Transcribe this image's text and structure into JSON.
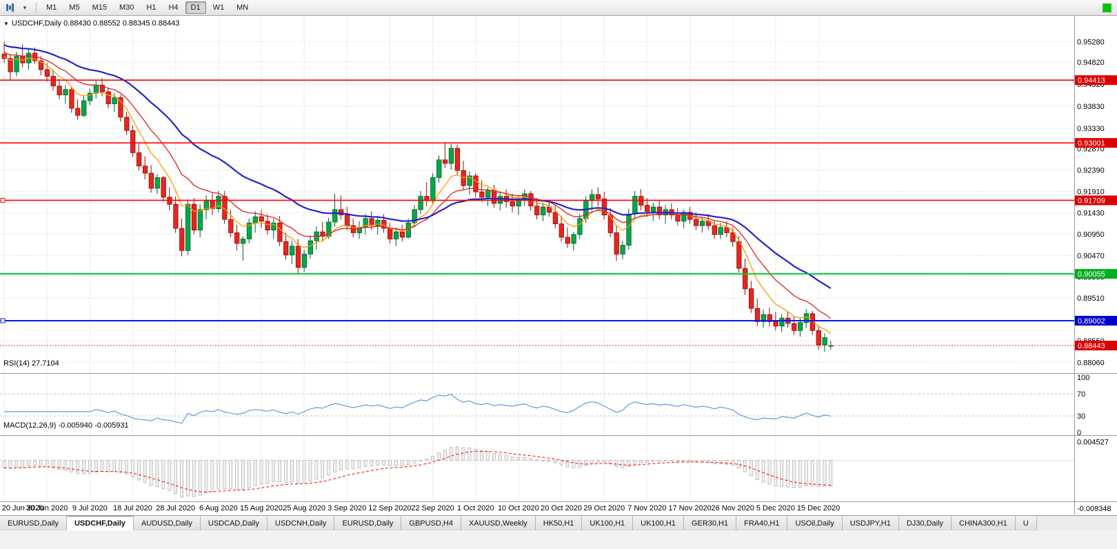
{
  "icons": {
    "chart_dropdown": "▼",
    "caret_down": "▾"
  },
  "toolbar": {
    "timeframes": [
      "M1",
      "M5",
      "M15",
      "M30",
      "H1",
      "H4",
      "D1",
      "W1",
      "MN"
    ],
    "active_timeframe": "D1",
    "status_color": "#00c800"
  },
  "chart": {
    "title": "USDCHF,Daily 0.88430 0.88552 0.88345 0.88443",
    "symbol": "USDCHF",
    "period": "Daily",
    "open": "0.88430",
    "high": "0.88552",
    "low": "0.88345",
    "close": "0.88443"
  },
  "indicators": {
    "rsi_label": "RSI(14) 27.7104",
    "macd_label": "MACD(12,26,9) -0.005940 -0.005931"
  },
  "chart_data": {
    "type": "candlestick",
    "symbol": "USDCHF",
    "timeframe": "Daily",
    "price_range": {
      "min": 0.879,
      "max": 0.9575
    },
    "price_axis_labels": [
      0.9528,
      0.9482,
      0.9432,
      0.9383,
      0.9333,
      0.9287,
      0.9239,
      0.9191,
      0.9143,
      0.9095,
      0.9047,
      0.8999,
      0.8951,
      0.8855,
      0.8806
    ],
    "hlines": [
      {
        "value": 0.94413,
        "label": "0.94413",
        "color": "#ff0000",
        "badge": "#dd0000",
        "width": 1.6,
        "handle": false
      },
      {
        "value": 0.93001,
        "label": "0.93001",
        "color": "#ff0000",
        "badge": "#dd0000",
        "width": 1.6,
        "handle": false
      },
      {
        "value": 0.91709,
        "label": "0.91709",
        "color": "#ff0000",
        "badge": "#dd0000",
        "width": 1.6,
        "handle": true
      },
      {
        "value": 0.90055,
        "label": "0.90055",
        "color": "#00d02a",
        "badge": "#00b020",
        "width": 2,
        "handle": false
      },
      {
        "value": 0.89002,
        "label": "0.89002",
        "color": "#0018ff",
        "badge": "#0000cc",
        "width": 2,
        "handle": true
      }
    ],
    "current_price": {
      "value": 0.88443,
      "label": "0.88443",
      "color": "#e03030",
      "badge": "#dd0000"
    },
    "date_labels": [
      "20 Jun 2020",
      "30 Jun 2020",
      "9 Jul 2020",
      "18 Jul 2020",
      "28 Jul 2020",
      "6 Aug 2020",
      "15 Aug 2020",
      "25 Aug 2020",
      "3 Sep 2020",
      "12 Sep 2020",
      "22 Sep 2020",
      "1 Oct 2020",
      "10 Oct 2020",
      "20 Oct 2020",
      "29 Oct 2020",
      "7 Nov 2020",
      "17 Nov 2020",
      "26 Nov 2020",
      "5 Dec 2020",
      "15 Dec 2020"
    ],
    "label_every": 7,
    "candles": [
      [
        0.95,
        0.9528,
        0.948,
        0.949
      ],
      [
        0.949,
        0.95,
        0.9441,
        0.946
      ],
      [
        0.946,
        0.9505,
        0.945,
        0.9495
      ],
      [
        0.9495,
        0.9522,
        0.947,
        0.948
      ],
      [
        0.948,
        0.9512,
        0.9465,
        0.9502
      ],
      [
        0.9502,
        0.9515,
        0.9478,
        0.9485
      ],
      [
        0.9485,
        0.9495,
        0.9452,
        0.9465
      ],
      [
        0.9465,
        0.948,
        0.9438,
        0.945
      ],
      [
        0.945,
        0.9465,
        0.9418,
        0.9428
      ],
      [
        0.9428,
        0.9445,
        0.9398,
        0.9408
      ],
      [
        0.9408,
        0.943,
        0.9388,
        0.942
      ],
      [
        0.942,
        0.9426,
        0.9368,
        0.9378
      ],
      [
        0.9378,
        0.9398,
        0.9352,
        0.9362
      ],
      [
        0.9362,
        0.9405,
        0.9358,
        0.9395
      ],
      [
        0.9395,
        0.9422,
        0.9385,
        0.9412
      ],
      [
        0.9412,
        0.944,
        0.94,
        0.943
      ],
      [
        0.943,
        0.9446,
        0.9405,
        0.9415
      ],
      [
        0.9415,
        0.9425,
        0.9378,
        0.9388
      ],
      [
        0.9388,
        0.9412,
        0.937,
        0.9402
      ],
      [
        0.9402,
        0.9408,
        0.9348,
        0.9358
      ],
      [
        0.9358,
        0.937,
        0.9318,
        0.9328
      ],
      [
        0.9328,
        0.934,
        0.9268,
        0.9278
      ],
      [
        0.9278,
        0.93,
        0.9238,
        0.9248
      ],
      [
        0.9248,
        0.927,
        0.9218,
        0.9232
      ],
      [
        0.9232,
        0.925,
        0.9188,
        0.9198
      ],
      [
        0.9198,
        0.923,
        0.9185,
        0.9222
      ],
      [
        0.9222,
        0.9226,
        0.9168,
        0.9178
      ],
      [
        0.9178,
        0.92,
        0.9148,
        0.9162
      ],
      [
        0.9162,
        0.918,
        0.9098,
        0.9108
      ],
      [
        0.9108,
        0.913,
        0.9045,
        0.9058
      ],
      [
        0.9058,
        0.9172,
        0.9048,
        0.9162
      ],
      [
        0.9162,
        0.9176,
        0.9094,
        0.9104
      ],
      [
        0.9104,
        0.9162,
        0.9088,
        0.915
      ],
      [
        0.915,
        0.9182,
        0.9128,
        0.917
      ],
      [
        0.917,
        0.9186,
        0.9138,
        0.9152
      ],
      [
        0.9152,
        0.9192,
        0.9144,
        0.918
      ],
      [
        0.918,
        0.9192,
        0.9118,
        0.9128
      ],
      [
        0.9128,
        0.915,
        0.9088,
        0.9098
      ],
      [
        0.9098,
        0.9116,
        0.9058,
        0.9074
      ],
      [
        0.9074,
        0.909,
        0.9035,
        0.9084
      ],
      [
        0.9084,
        0.913,
        0.9074,
        0.912
      ],
      [
        0.912,
        0.9146,
        0.9098,
        0.9134
      ],
      [
        0.9134,
        0.915,
        0.9108,
        0.9124
      ],
      [
        0.9124,
        0.914,
        0.9094,
        0.9104
      ],
      [
        0.9104,
        0.913,
        0.9084,
        0.912
      ],
      [
        0.912,
        0.9136,
        0.9068,
        0.9078
      ],
      [
        0.9078,
        0.9098,
        0.9038,
        0.9048
      ],
      [
        0.9048,
        0.908,
        0.9028,
        0.9068
      ],
      [
        0.9068,
        0.9084,
        0.9006,
        0.902
      ],
      [
        0.902,
        0.906,
        0.901,
        0.905
      ],
      [
        0.905,
        0.9092,
        0.904,
        0.908
      ],
      [
        0.908,
        0.9112,
        0.906,
        0.91
      ],
      [
        0.91,
        0.9122,
        0.9078,
        0.909
      ],
      [
        0.909,
        0.9132,
        0.9084,
        0.9122
      ],
      [
        0.9122,
        0.9186,
        0.9112,
        0.915
      ],
      [
        0.915,
        0.9182,
        0.9128,
        0.9138
      ],
      [
        0.9138,
        0.9156,
        0.9104,
        0.9114
      ],
      [
        0.9114,
        0.913,
        0.9088,
        0.9098
      ],
      [
        0.9098,
        0.9124,
        0.9084,
        0.911
      ],
      [
        0.911,
        0.914,
        0.9094,
        0.913
      ],
      [
        0.913,
        0.9146,
        0.9104,
        0.9114
      ],
      [
        0.9114,
        0.9136,
        0.9094,
        0.9126
      ],
      [
        0.9126,
        0.914,
        0.9098,
        0.9108
      ],
      [
        0.9108,
        0.912,
        0.9074,
        0.9084
      ],
      [
        0.9084,
        0.911,
        0.9068,
        0.91
      ],
      [
        0.91,
        0.9116,
        0.9078,
        0.9088
      ],
      [
        0.9088,
        0.913,
        0.9084,
        0.912
      ],
      [
        0.912,
        0.916,
        0.911,
        0.915
      ],
      [
        0.915,
        0.9192,
        0.914,
        0.918
      ],
      [
        0.918,
        0.9212,
        0.9158,
        0.917
      ],
      [
        0.917,
        0.9232,
        0.9164,
        0.9222
      ],
      [
        0.9222,
        0.9272,
        0.921,
        0.9262
      ],
      [
        0.9262,
        0.93,
        0.9244,
        0.9254
      ],
      [
        0.9254,
        0.9298,
        0.924,
        0.9288
      ],
      [
        0.9288,
        0.9296,
        0.9228,
        0.9238
      ],
      [
        0.9238,
        0.926,
        0.9194,
        0.9204
      ],
      [
        0.9204,
        0.9236,
        0.9184,
        0.9226
      ],
      [
        0.9226,
        0.9232,
        0.9178,
        0.919
      ],
      [
        0.919,
        0.9216,
        0.9168,
        0.9178
      ],
      [
        0.9178,
        0.92,
        0.9158,
        0.9194
      ],
      [
        0.9194,
        0.9206,
        0.9154,
        0.9164
      ],
      [
        0.9164,
        0.919,
        0.9148,
        0.918
      ],
      [
        0.918,
        0.9196,
        0.9154,
        0.9168
      ],
      [
        0.9168,
        0.9186,
        0.9144,
        0.9158
      ],
      [
        0.9158,
        0.918,
        0.9138,
        0.9174
      ],
      [
        0.9174,
        0.9196,
        0.9158,
        0.9186
      ],
      [
        0.9186,
        0.9192,
        0.9148,
        0.9158
      ],
      [
        0.9158,
        0.9176,
        0.9128,
        0.9138
      ],
      [
        0.9138,
        0.9166,
        0.9124,
        0.9156
      ],
      [
        0.9156,
        0.917,
        0.9134,
        0.9144
      ],
      [
        0.9144,
        0.916,
        0.9108,
        0.9118
      ],
      [
        0.9118,
        0.9136,
        0.9078,
        0.9088
      ],
      [
        0.9088,
        0.911,
        0.9064,
        0.9074
      ],
      [
        0.9074,
        0.91,
        0.9058,
        0.9094
      ],
      [
        0.9094,
        0.914,
        0.9084,
        0.913
      ],
      [
        0.913,
        0.918,
        0.912,
        0.917
      ],
      [
        0.917,
        0.9196,
        0.9148,
        0.9184
      ],
      [
        0.9184,
        0.92,
        0.9158,
        0.9174
      ],
      [
        0.9174,
        0.919,
        0.9128,
        0.9138
      ],
      [
        0.9138,
        0.9154,
        0.9088,
        0.9098
      ],
      [
        0.9098,
        0.9114,
        0.9035,
        0.905
      ],
      [
        0.905,
        0.908,
        0.9038,
        0.907
      ],
      [
        0.907,
        0.9152,
        0.906,
        0.914
      ],
      [
        0.914,
        0.9192,
        0.913,
        0.918
      ],
      [
        0.918,
        0.9196,
        0.9148,
        0.916
      ],
      [
        0.916,
        0.9176,
        0.9134,
        0.9146
      ],
      [
        0.9146,
        0.9166,
        0.9124,
        0.9156
      ],
      [
        0.9156,
        0.917,
        0.9128,
        0.9138
      ],
      [
        0.9138,
        0.916,
        0.9118,
        0.915
      ],
      [
        0.915,
        0.9164,
        0.9128,
        0.9138
      ],
      [
        0.9138,
        0.9154,
        0.9114,
        0.9124
      ],
      [
        0.9124,
        0.915,
        0.9108,
        0.9144
      ],
      [
        0.9144,
        0.9156,
        0.9118,
        0.9128
      ],
      [
        0.9128,
        0.9144,
        0.9104,
        0.9114
      ],
      [
        0.9114,
        0.9134,
        0.9098,
        0.9124
      ],
      [
        0.9124,
        0.914,
        0.9104,
        0.9114
      ],
      [
        0.9114,
        0.9124,
        0.9084,
        0.9094
      ],
      [
        0.9094,
        0.912,
        0.9084,
        0.911
      ],
      [
        0.911,
        0.9124,
        0.9088,
        0.9098
      ],
      [
        0.9098,
        0.911,
        0.9066,
        0.9078
      ],
      [
        0.9078,
        0.909,
        0.9008,
        0.9018
      ],
      [
        0.9018,
        0.904,
        0.8958,
        0.8972
      ],
      [
        0.8972,
        0.899,
        0.8918,
        0.8928
      ],
      [
        0.8928,
        0.895,
        0.8888,
        0.8898
      ],
      [
        0.8898,
        0.8925,
        0.8884,
        0.8914
      ],
      [
        0.8914,
        0.893,
        0.8888,
        0.8898
      ],
      [
        0.8898,
        0.892,
        0.8878,
        0.8888
      ],
      [
        0.8888,
        0.8916,
        0.8874,
        0.8906
      ],
      [
        0.8906,
        0.892,
        0.8884,
        0.8894
      ],
      [
        0.8894,
        0.891,
        0.8868,
        0.8878
      ],
      [
        0.8878,
        0.8906,
        0.8864,
        0.8896
      ],
      [
        0.8896,
        0.8926,
        0.8884,
        0.8916
      ],
      [
        0.8916,
        0.8922,
        0.8868,
        0.8878
      ],
      [
        0.8878,
        0.889,
        0.8835,
        0.8846
      ],
      [
        0.8846,
        0.8872,
        0.883,
        0.8862
      ],
      [
        0.8843,
        0.88552,
        0.88345,
        0.88443
      ]
    ],
    "moving_averages": [
      {
        "name": "ma-fast",
        "period": 7,
        "color": "#ff9900",
        "width": 1.3,
        "seed": 0.9496
      },
      {
        "name": "ma-medium",
        "period": 14,
        "color": "#e02020",
        "width": 1.3,
        "seed": 0.9506
      },
      {
        "name": "ma-slow",
        "period": 30,
        "color": "#2222cc",
        "width": 2.2,
        "seed": 0.9522
      }
    ],
    "rsi": {
      "period": 14,
      "value": 27.7104,
      "color": "#5f9bdc",
      "axis_labels": [
        100,
        70,
        30,
        0
      ],
      "levels": [
        70,
        30
      ]
    },
    "macd": {
      "fast": 12,
      "slow": 26,
      "signal": 9,
      "main": -0.00594,
      "signal_value": -0.005931,
      "range": [
        -0.0095,
        0.0046
      ],
      "axis_values": [
        0.004527,
        -0.009348
      ],
      "histogram_fill": "#f2f2f2",
      "histogram_stroke": "#b4b4b4",
      "signal_color": "#ff0000"
    },
    "colors": {
      "up": "#00a949",
      "up_border": "#005a26",
      "down": "#e8251f",
      "down_border": "#8f0d08",
      "grid": "#e2e2e2",
      "background": "#ffffff"
    }
  },
  "tabs": {
    "items": [
      "EURUSD,Daily",
      "USDCHF,Daily",
      "AUDUSD,Daily",
      "USDCAD,Daily",
      "USDCNH,Daily",
      "EURUSD,Daily",
      "GBPUSD,H4",
      "XAUUSD,Weekly",
      "HK50,H1",
      "UK100,H1",
      "UK100,H1",
      "GER30,H1",
      "FRA40,H1",
      "USOil,Daily",
      "USDJPY,H1",
      "DJ30,Daily",
      "CHINA300,H1",
      "U"
    ],
    "active_index": 1
  }
}
